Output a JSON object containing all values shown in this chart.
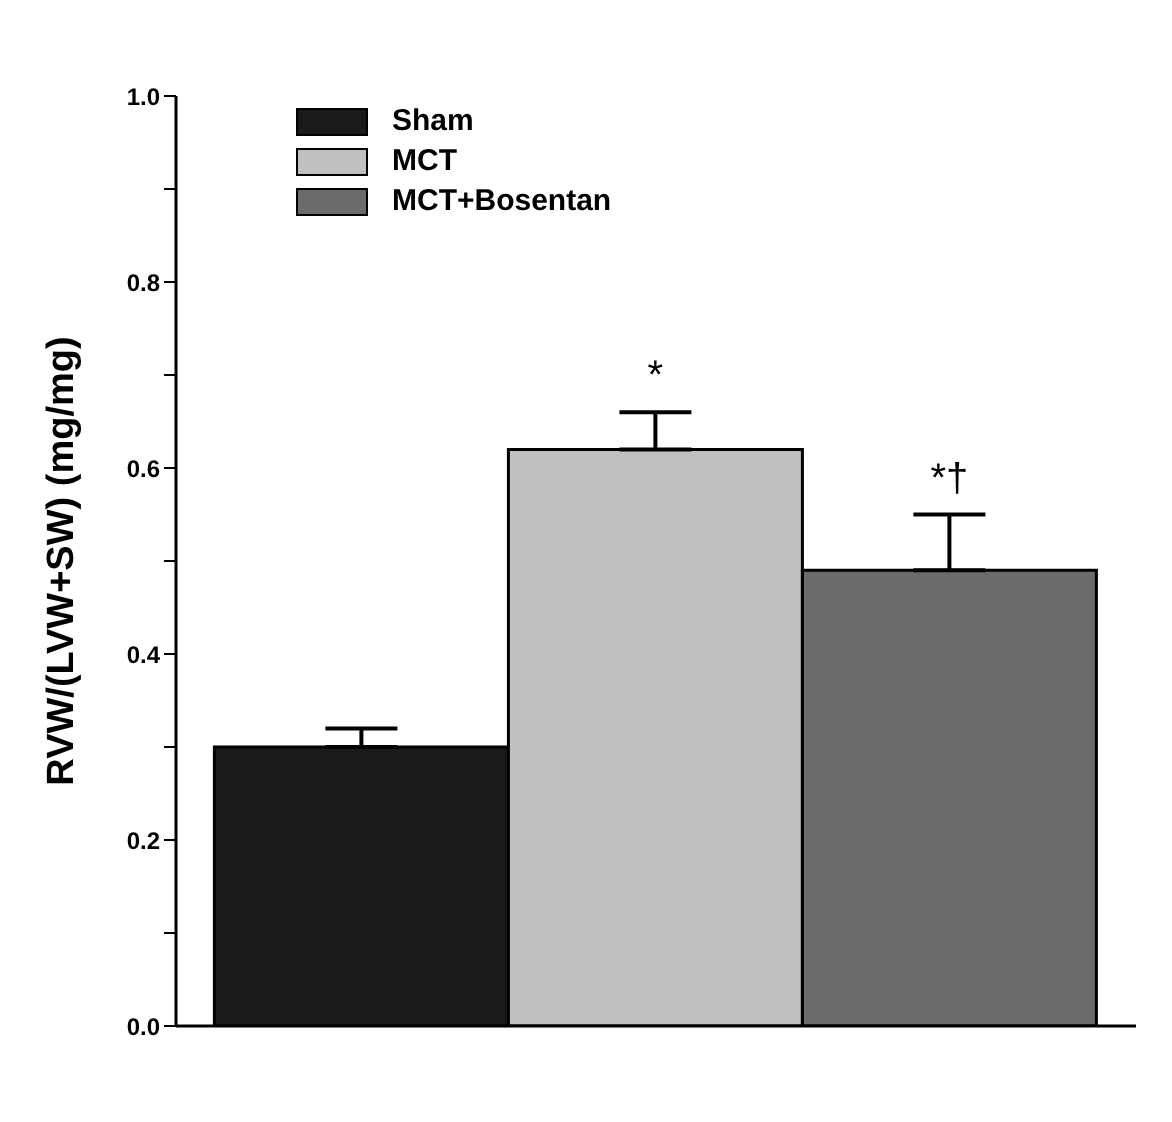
{
  "chart_data": {
    "type": "bar",
    "ylabel": "RVW/(LVW+SW) (mg/mg)",
    "categories": [
      null
    ],
    "series": [
      {
        "name": "Sham",
        "color": "#1a1a1a",
        "values": [
          0.3
        ],
        "errors": [
          [
            0.3,
            0.32
          ]
        ]
      },
      {
        "name": "MCT",
        "color": "#c0c0c0",
        "values": [
          0.62
        ],
        "errors": [
          [
            0.62,
            0.66
          ]
        ]
      },
      {
        "name": "MCT+Bosentan",
        "color": "#6b6b6b",
        "values": [
          0.49
        ],
        "errors": [
          [
            0.49,
            0.55
          ]
        ]
      }
    ],
    "ylim": [
      0,
      1
    ],
    "yticks": [
      {
        "value": 0,
        "label": "0.0"
      },
      {
        "value": 0.1,
        "label": null
      },
      0.2,
      {
        "value": 0.3,
        "label": null
      },
      0.4,
      {
        "value": 0.5,
        "label": null
      },
      0.6,
      {
        "value": 0.7,
        "label": null
      },
      0.8,
      {
        "value": 0.9,
        "label": null
      },
      {
        "value": 1,
        "label": "1.0"
      }
    ],
    "annotations": [
      "*",
      "*†"
    ],
    "legend": "top left",
    "grid": false
  }
}
